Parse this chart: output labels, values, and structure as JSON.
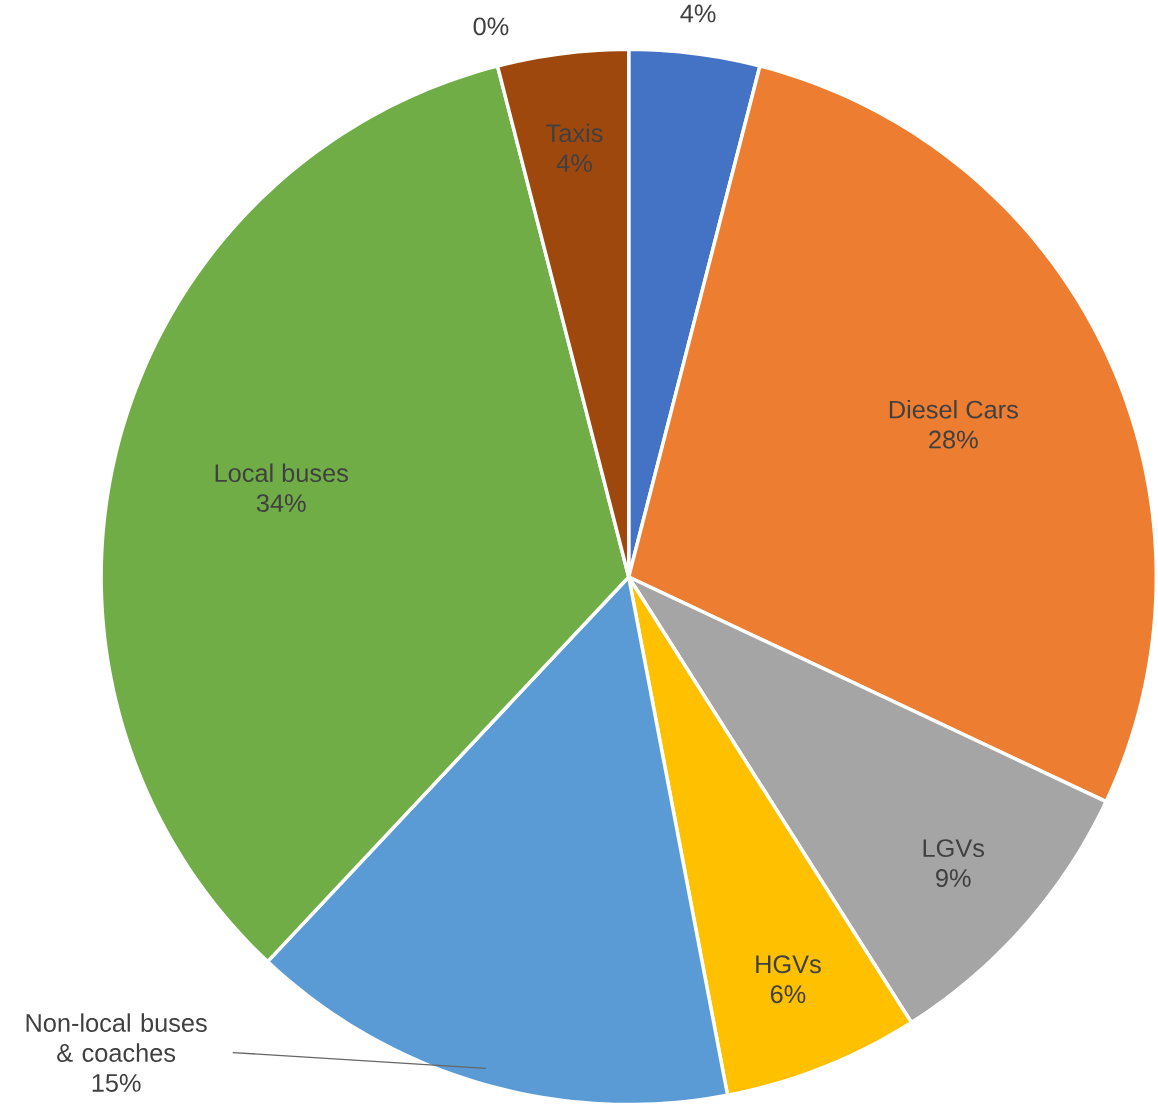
{
  "chart_data": {
    "type": "pie",
    "categories": [
      null,
      "Diesel Cars",
      "LGVs",
      "HGVs",
      "Non-local buses & coaches",
      "Local buses",
      null,
      "Taxis"
    ],
    "values": [
      4,
      28,
      9,
      6,
      15,
      34,
      0,
      4
    ],
    "value_labels": [
      "4%",
      "28%",
      "9%",
      "6%",
      "15%",
      "34%",
      "0%",
      "4%"
    ],
    "colors": [
      "#4472c4",
      "#ed7d31",
      "#a5a5a5",
      "#ffc000",
      "#5b9bd5",
      "#70ad47",
      "#264478",
      "#9e480e"
    ]
  }
}
